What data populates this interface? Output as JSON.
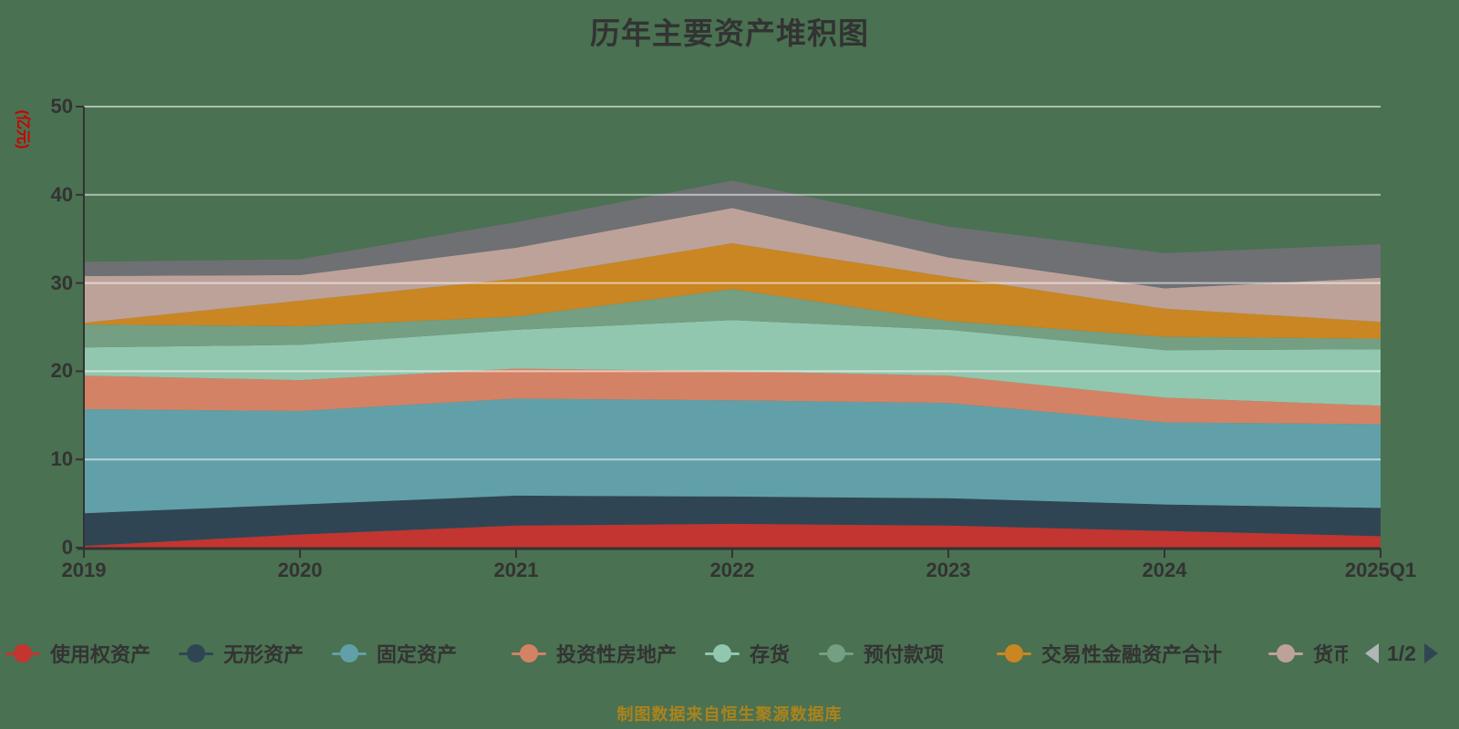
{
  "title": "历年主要资产堆积图",
  "caption": "制图数据来自恒生聚源数据库",
  "y_axis": {
    "name": "(亿元)",
    "tick_labels": [
      "0",
      "10",
      "20",
      "30",
      "40",
      "50"
    ],
    "tick_values": [
      0,
      10,
      20,
      30,
      40,
      50
    ]
  },
  "x_axis": {
    "categories": [
      "2019",
      "2020",
      "2021",
      "2022",
      "2023",
      "2024",
      "2025Q1"
    ]
  },
  "legend": {
    "page_label": "1/2",
    "prev_icon": "left-triangle",
    "next_icon": "right-triangle",
    "prev_color": "#b1b5b8",
    "next_color": "#2f4554",
    "items": [
      {
        "label": "使用权资产",
        "color": "#c23531"
      },
      {
        "label": "无形资产",
        "color": "#2f4554"
      },
      {
        "label": "固定资产",
        "color": "#61a0a8"
      },
      {
        "label": "投资性房地产",
        "color": "#d48265"
      },
      {
        "label": "存货",
        "color": "#91c7ae"
      },
      {
        "label": "预付款项",
        "color": "#749f83"
      },
      {
        "label": "交易性金融资产合计",
        "color": "#ca8622"
      },
      {
        "label": "货币",
        "color": "#bda29a"
      }
    ]
  },
  "chart_data": {
    "type": "area",
    "stacked": true,
    "title": "历年主要资产堆积图",
    "ylabel": "(亿元)",
    "ylim": [
      0,
      50
    ],
    "grid": true,
    "legend_position": "bottom",
    "x": [
      "2019",
      "2020",
      "2021",
      "2022",
      "2023",
      "2024",
      "2025Q1"
    ],
    "series": [
      {
        "name": "使用权资产",
        "color": "#c23531",
        "values": [
          0.2,
          1.5,
          2.5,
          2.7,
          2.5,
          1.9,
          1.3
        ]
      },
      {
        "name": "无形资产",
        "color": "#2f4554",
        "values": [
          3.7,
          3.4,
          3.4,
          3.1,
          3.1,
          3.0,
          3.2
        ]
      },
      {
        "name": "固定资产",
        "color": "#61a0a8",
        "values": [
          11.8,
          10.6,
          11.0,
          10.9,
          10.8,
          9.3,
          9.5
        ]
      },
      {
        "name": "投资性房地产",
        "color": "#d48265",
        "values": [
          3.8,
          3.5,
          3.4,
          3.3,
          3.1,
          2.8,
          2.1
        ]
      },
      {
        "name": "存货",
        "color": "#91c7ae",
        "values": [
          3.2,
          4.0,
          4.4,
          5.8,
          5.2,
          5.4,
          6.4
        ]
      },
      {
        "name": "预付款项",
        "color": "#749f83",
        "values": [
          2.6,
          2.1,
          1.5,
          3.5,
          1.0,
          1.5,
          1.2
        ]
      },
      {
        "name": "交易性金融资产合计",
        "color": "#ca8622",
        "values": [
          0.2,
          2.9,
          4.3,
          5.2,
          5.0,
          3.2,
          1.9
        ]
      },
      {
        "name": "货币",
        "color": "#bda29a",
        "values": [
          5.3,
          2.9,
          3.5,
          4.0,
          2.2,
          2.3,
          5.0
        ]
      },
      {
        "name": "",
        "color": "#6e7074",
        "values": [
          1.6,
          1.8,
          2.9,
          3.1,
          3.5,
          4.0,
          3.8
        ]
      }
    ]
  },
  "colors": {
    "background": "#4a7151",
    "axis": "#333333",
    "gridline": "rgba(255,255,255,0.55)",
    "title": "#333333",
    "y_name": "#cc0000",
    "caption": "#aa831d"
  }
}
